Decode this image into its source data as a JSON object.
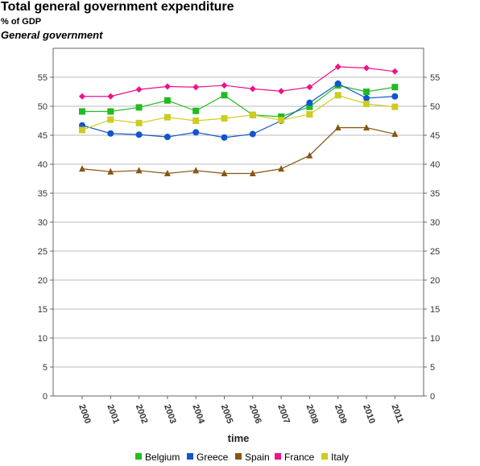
{
  "header": {
    "title": "Total general government expenditure",
    "subtitle": "% of GDP",
    "subtitle2": "General government"
  },
  "chart_data": {
    "type": "line",
    "title": "Total general government expenditure",
    "subtitle": "% of GDP",
    "xlabel": "time",
    "ylabel": "",
    "ylim": [
      0,
      60
    ],
    "yticks": [
      0,
      5,
      10,
      15,
      20,
      25,
      30,
      35,
      40,
      45,
      50,
      55
    ],
    "grid": true,
    "legend_position": "bottom",
    "categories": [
      "2000",
      "2001",
      "2002",
      "2003",
      "2004",
      "2005",
      "2006",
      "2007",
      "2008",
      "2009",
      "2010",
      "2011"
    ],
    "series": [
      {
        "name": "Belgium",
        "color": "#22bb22",
        "marker": "square",
        "values": [
          49.1,
          49.1,
          49.8,
          51.0,
          49.2,
          51.9,
          48.5,
          48.2,
          49.9,
          53.6,
          52.5,
          53.3
        ]
      },
      {
        "name": "Greece",
        "color": "#1155cc",
        "marker": "circle",
        "values": [
          46.7,
          45.3,
          45.1,
          44.7,
          45.5,
          44.6,
          45.2,
          47.5,
          50.6,
          53.9,
          51.4,
          51.7
        ]
      },
      {
        "name": "Spain",
        "color": "#885511",
        "marker": "triangle",
        "values": [
          39.2,
          38.7,
          38.9,
          38.4,
          38.9,
          38.4,
          38.4,
          39.2,
          41.5,
          46.3,
          46.3,
          45.2
        ]
      },
      {
        "name": "France",
        "color": "#ee1188",
        "marker": "diamond",
        "values": [
          51.7,
          51.7,
          52.9,
          53.4,
          53.3,
          53.6,
          53.0,
          52.6,
          53.3,
          56.8,
          56.6,
          56.0
        ]
      },
      {
        "name": "Italy",
        "color": "#cccc22",
        "marker": "square",
        "values": [
          45.9,
          47.7,
          47.1,
          48.1,
          47.5,
          47.9,
          48.5,
          47.6,
          48.6,
          51.9,
          50.4,
          49.9
        ]
      }
    ]
  }
}
